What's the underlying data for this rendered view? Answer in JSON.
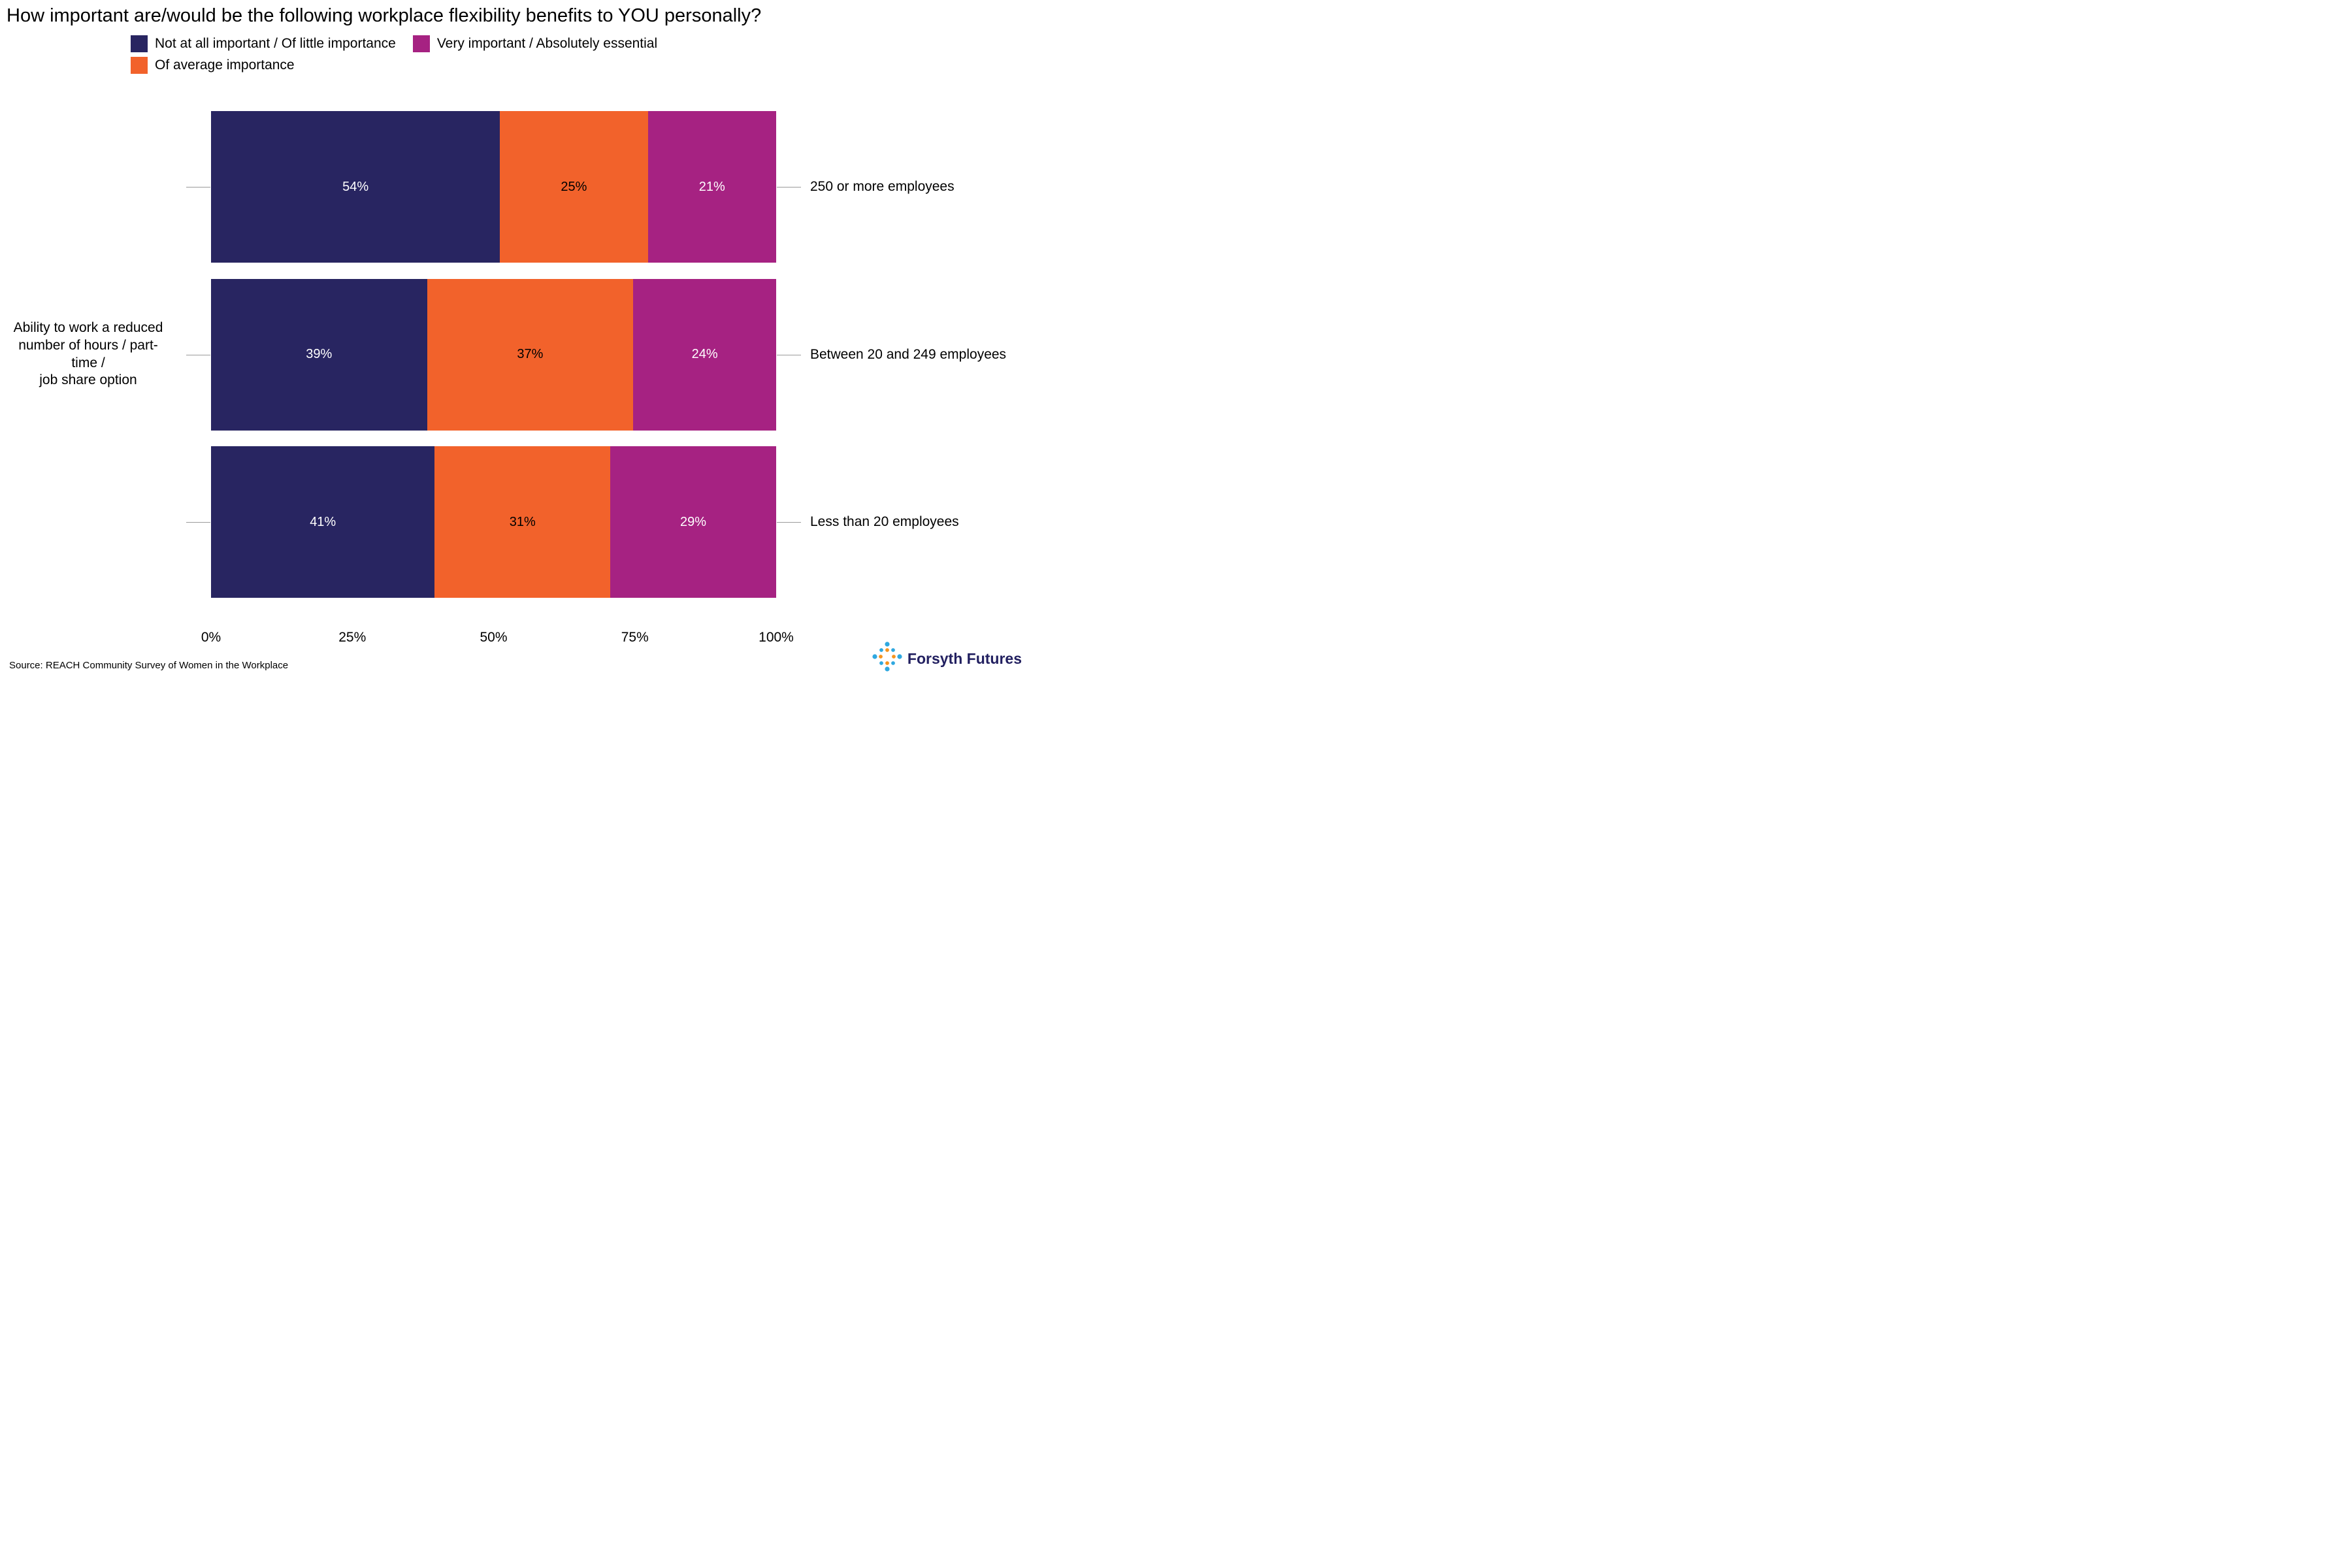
{
  "title": "How important are/would be the following workplace flexibility benefits to YOU personally?",
  "legend": [
    {
      "label": "Not at all important / Of little importance",
      "color": "#282561"
    },
    {
      "label": "Of average importance",
      "color": "#F2622B"
    },
    {
      "label": "Very important / Absolutely essential",
      "color": "#A62282"
    }
  ],
  "chart_data": {
    "type": "bar",
    "orientation": "horizontal",
    "stacked": true,
    "title": "How important are/would be the following workplace flexibility benefits to YOU personally?",
    "question_label": "Ability to work a reduced\nnumber of hours / part-time /\njob share option",
    "categories": [
      "250 or more employees",
      "Between 20 and 249 employees",
      "Less than 20 employees"
    ],
    "series": [
      {
        "name": "Not at all important / Of little importance",
        "color": "#282561",
        "text_color": "#ffffff",
        "values": [
          54,
          39,
          41
        ]
      },
      {
        "name": "Of average importance",
        "color": "#F2622B",
        "text_color": "#000000",
        "values": [
          25,
          37,
          31
        ]
      },
      {
        "name": "Very important / Absolutely essential",
        "color": "#A62282",
        "text_color": "#ffffff",
        "values": [
          21,
          24,
          29
        ]
      }
    ],
    "value_suffix": "%",
    "xlim": [
      0,
      100
    ],
    "x_ticks": [
      {
        "label": "0%",
        "pos": 0
      },
      {
        "label": "25%",
        "pos": 25
      },
      {
        "label": "50%",
        "pos": 50
      },
      {
        "label": "75%",
        "pos": 75
      },
      {
        "label": "100%",
        "pos": 100
      }
    ],
    "grid": false,
    "legend_position": "top"
  },
  "source": "Source: REACH Community Survey of Women in the Workplace",
  "brand": {
    "name": "Forsyth Futures",
    "icon": "dot-burst-logo",
    "blue": "#2FA8E0",
    "orange": "#F7941E"
  }
}
